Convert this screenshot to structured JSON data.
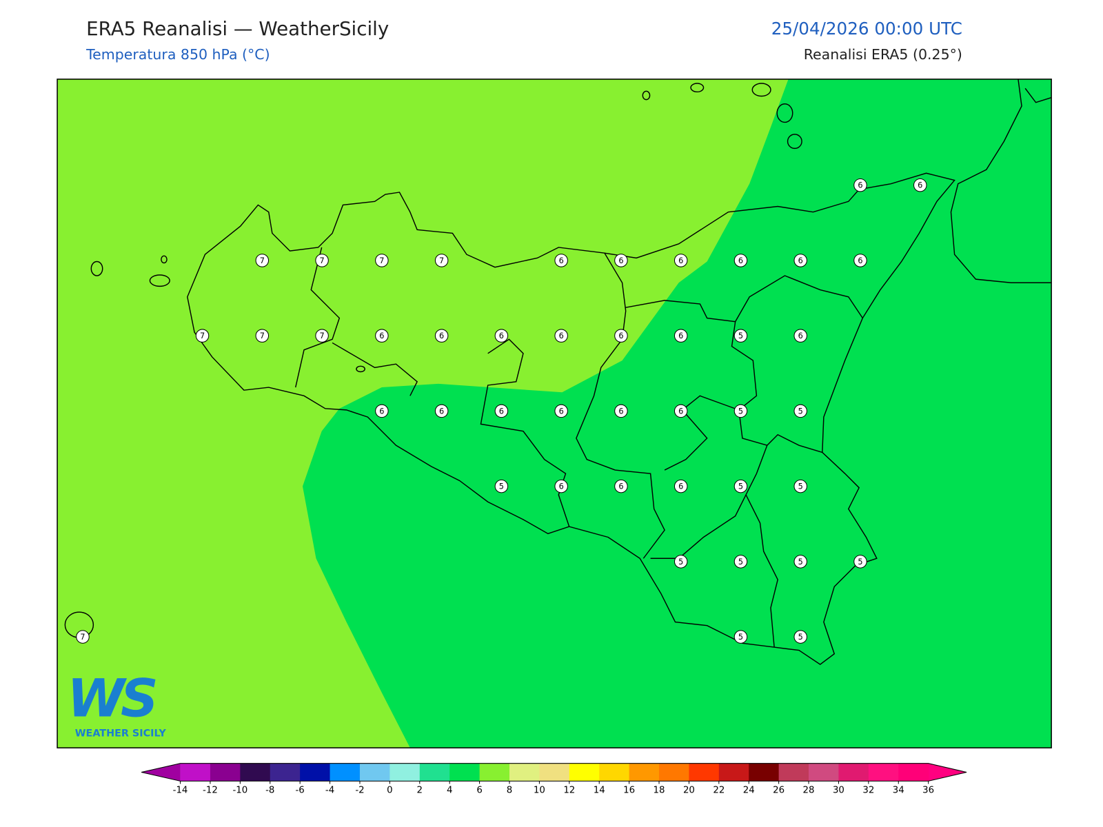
{
  "header": {
    "title": "ERA5 Reanalisi — WeatherSicily",
    "subtitle": "Temperatura 850 hPa (°C)",
    "datetime": "25/04/2026 00:00 UTC",
    "source": "Reanalisi ERA5 (0.25°)"
  },
  "logo": {
    "mark": "WS",
    "name": "WEATHER SICILY"
  },
  "map": {
    "grid": [
      [
        null,
        null,
        null,
        null,
        null,
        null,
        null,
        null,
        null,
        null,
        null,
        null,
        null,
        6,
        6
      ],
      [
        null,
        null,
        null,
        7,
        7,
        7,
        7,
        null,
        6,
        6,
        6,
        6,
        6,
        6,
        null
      ],
      [
        null,
        null,
        7,
        7,
        7,
        6,
        6,
        6,
        6,
        6,
        6,
        5,
        6,
        null,
        null
      ],
      [
        null,
        null,
        null,
        null,
        null,
        6,
        6,
        6,
        6,
        6,
        6,
        5,
        5,
        null,
        null
      ],
      [
        null,
        null,
        null,
        null,
        null,
        null,
        null,
        5,
        6,
        6,
        6,
        5,
        5,
        null,
        null
      ],
      [
        null,
        null,
        null,
        null,
        null,
        null,
        null,
        null,
        null,
        null,
        5,
        5,
        5,
        5,
        null
      ],
      [
        7,
        null,
        null,
        null,
        null,
        null,
        null,
        null,
        null,
        null,
        null,
        5,
        5,
        null,
        null
      ]
    ]
  },
  "colorbar": {
    "ticks": [
      -14,
      -12,
      -10,
      -8,
      -6,
      -4,
      -2,
      0,
      2,
      4,
      6,
      8,
      10,
      12,
      14,
      16,
      18,
      20,
      22,
      24,
      26,
      28,
      30,
      32,
      34,
      36
    ],
    "colors": [
      "#c010c8",
      "#8a0090",
      "#300a50",
      "#3c2490",
      "#0010a8",
      "#0090ff",
      "#70c8f0",
      "#90f0e0",
      "#20e090",
      "#00e050",
      "#88f030",
      "#e0f080",
      "#f0e080",
      "#ffff00",
      "#ffd700",
      "#ff9800",
      "#ff7800",
      "#ff3800",
      "#c81818",
      "#780000",
      "#c03a5a",
      "#d04a80",
      "#e01a70",
      "#ff1080",
      "#ff0078"
    ],
    "under_color": "#a000a0",
    "over_color": "#ff0080"
  }
}
